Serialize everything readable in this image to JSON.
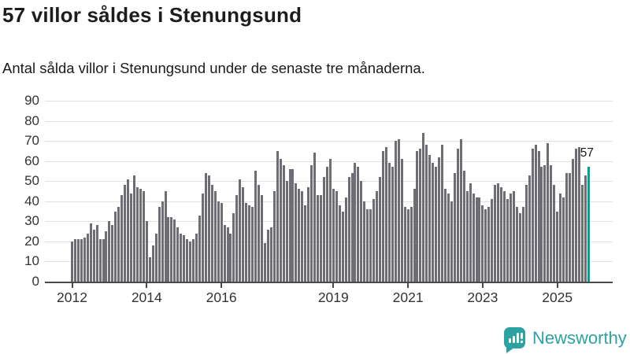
{
  "header": {
    "title": "57 villor såldes i Stenungsund",
    "subtitle": "Antal sålda villor i Stenungsund under de senaste tre månaderna."
  },
  "chart_data": {
    "type": "bar",
    "title": "57 villor såldes i Stenungsund",
    "subtitle": "Antal sålda villor i Stenungsund under de senaste tre månaderna.",
    "x_start": "2012-01",
    "x_frequency": "monthly",
    "values": [
      20,
      21,
      21,
      21,
      22,
      24,
      29,
      26,
      28,
      21,
      21,
      25,
      30,
      28,
      35,
      37,
      43,
      48,
      51,
      44,
      53,
      47,
      46,
      45,
      30,
      12,
      18,
      24,
      37,
      40,
      45,
      32,
      32,
      31,
      27,
      24,
      23,
      21,
      20,
      21,
      24,
      33,
      44,
      54,
      53,
      48,
      45,
      40,
      39,
      28,
      27,
      24,
      34,
      43,
      51,
      47,
      39,
      38,
      37,
      55,
      48,
      43,
      19,
      26,
      27,
      45,
      65,
      61,
      58,
      50,
      56,
      56,
      49,
      46,
      45,
      38,
      47,
      58,
      64,
      43,
      43,
      52,
      57,
      61,
      46,
      45,
      38,
      35,
      42,
      52,
      54,
      59,
      57,
      50,
      40,
      36,
      36,
      41,
      45,
      52,
      65,
      67,
      59,
      57,
      70,
      71,
      61,
      37,
      36,
      37,
      46,
      65,
      66,
      74,
      68,
      63,
      59,
      57,
      62,
      68,
      46,
      44,
      40,
      54,
      66,
      71,
      55,
      45,
      49,
      44,
      42,
      42,
      38,
      36,
      37,
      41,
      48,
      49,
      47,
      45,
      41,
      44,
      45,
      37,
      34,
      37,
      48,
      53,
      66,
      68,
      65,
      57,
      58,
      69,
      58,
      48,
      35,
      44,
      42,
      54,
      54,
      61,
      66,
      67,
      48,
      53,
      57
    ],
    "highlight_last_value": 57,
    "annotation_label": "57",
    "ylim": [
      0,
      90
    ],
    "yticks": [
      0,
      10,
      20,
      30,
      40,
      50,
      60,
      70,
      80,
      90
    ],
    "xtick_labels": [
      "2012",
      "2014",
      "2016",
      "2019",
      "2021",
      "2023",
      "2025"
    ],
    "xtick_month_index": [
      0,
      24,
      48,
      84,
      108,
      132,
      156
    ],
    "grid": true,
    "legend": "none",
    "colors": {
      "bar": "#6e6d73",
      "highlight": "#00a09b",
      "grid": "#e1e1e1",
      "axis": "#4a4a4a",
      "tick_text": "#333333"
    }
  },
  "footer": {
    "brand": "Newsworthy"
  }
}
